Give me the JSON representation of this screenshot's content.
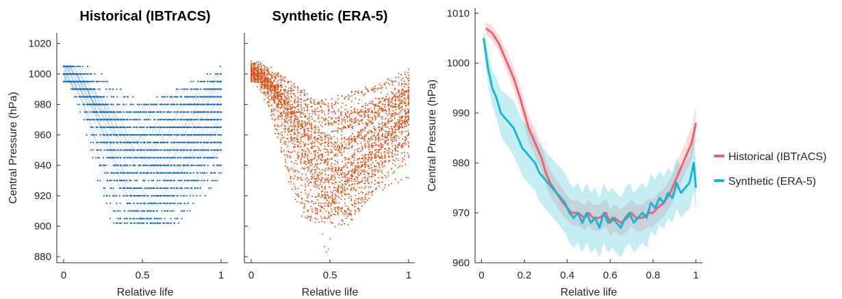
{
  "chart_data": [
    {
      "type": "scatter",
      "title": "Historical (IBTrACS)",
      "xlabel": "Relative life",
      "ylabel": "Central Pressure (hPa)",
      "xlim": [
        0,
        1
      ],
      "ylim": [
        876,
        1027
      ],
      "xticks": [
        "0",
        "0.5",
        "1"
      ],
      "yticks": [
        "880",
        "900",
        "920",
        "940",
        "960",
        "980",
        "1000",
        "1020"
      ],
      "color": "#1f6fbf",
      "n_tracks": 75,
      "n_points_per_track": 48,
      "seed": 11,
      "min_pressure": 902,
      "max_pressure": 1020
    },
    {
      "type": "scatter",
      "title": "Synthetic (ERA-5)",
      "xlabel": "Relative life",
      "xlim": [
        0,
        1
      ],
      "ylim": [
        876,
        1027
      ],
      "xticks": [
        "0",
        "0.5",
        "1"
      ],
      "color": "#d95319",
      "n_tracks": 65,
      "n_points_per_track": 48,
      "seed": 29,
      "min_pressure": 883,
      "max_pressure": 1019
    },
    {
      "type": "line",
      "xlabel": "Relative life",
      "ylabel": "Central Pressure (hPa)",
      "xlim": [
        -0.03,
        1.03
      ],
      "ylim": [
        960,
        1011
      ],
      "xticks": [
        "0",
        "0.2",
        "0.4",
        "0.6",
        "0.8",
        "1"
      ],
      "yticks": [
        "960",
        "970",
        "980",
        "990",
        "1000",
        "1010"
      ],
      "legend_position": "right",
      "series": [
        {
          "name": "Historical (IBTrACS)",
          "color": "#f0606e",
          "x": [
            0.02,
            0.05,
            0.08,
            0.1,
            0.12,
            0.15,
            0.18,
            0.2,
            0.22,
            0.25,
            0.28,
            0.3,
            0.32,
            0.35,
            0.38,
            0.4,
            0.42,
            0.45,
            0.48,
            0.5,
            0.52,
            0.55,
            0.58,
            0.6,
            0.62,
            0.65,
            0.68,
            0.7,
            0.72,
            0.75,
            0.78,
            0.8,
            0.82,
            0.85,
            0.88,
            0.9,
            0.92,
            0.95,
            0.98,
            1.0
          ],
          "y": [
            1007,
            1006,
            1004,
            1002,
            1000,
            997,
            993,
            990,
            987,
            984,
            981,
            978,
            976,
            974,
            972,
            971,
            970,
            970,
            969,
            970,
            969,
            969,
            970,
            968,
            969,
            968,
            969,
            970,
            969,
            969,
            970,
            970,
            971,
            972,
            974,
            976,
            978,
            981,
            984,
            988
          ],
          "band": [
            1.2,
            1.5,
            1.6,
            1.8,
            2.0,
            2.2,
            2.4,
            2.5,
            2.6,
            2.6,
            2.6,
            2.6,
            2.6,
            2.6,
            2.6,
            2.5,
            2.5,
            2.5,
            2.5,
            2.6,
            2.6,
            2.6,
            2.7,
            2.7,
            2.7,
            2.7,
            2.7,
            2.7,
            2.7,
            2.7,
            2.8,
            2.8,
            2.8,
            2.8,
            2.8,
            2.9,
            3.0,
            3.0,
            3.2,
            3.5
          ]
        },
        {
          "name": "Synthetic (ERA-5)",
          "color": "#17b6d2",
          "x": [
            0.01,
            0.03,
            0.05,
            0.07,
            0.09,
            0.11,
            0.13,
            0.15,
            0.17,
            0.19,
            0.21,
            0.23,
            0.25,
            0.27,
            0.29,
            0.31,
            0.33,
            0.35,
            0.37,
            0.39,
            0.41,
            0.43,
            0.45,
            0.47,
            0.49,
            0.51,
            0.53,
            0.55,
            0.57,
            0.59,
            0.61,
            0.63,
            0.65,
            0.67,
            0.69,
            0.71,
            0.73,
            0.75,
            0.77,
            0.79,
            0.81,
            0.83,
            0.85,
            0.87,
            0.89,
            0.91,
            0.93,
            0.95,
            0.97,
            0.99,
            1.0
          ],
          "y": [
            1005,
            999,
            995,
            993,
            990,
            989,
            988,
            987,
            985,
            983,
            982,
            981,
            980,
            978,
            977,
            976,
            975,
            974,
            973,
            972,
            970,
            969,
            970,
            968,
            970,
            968,
            969,
            967,
            970,
            968,
            969,
            968,
            967,
            969,
            970,
            968,
            969,
            970,
            969,
            972,
            971,
            973,
            972,
            974,
            973,
            976,
            974,
            975,
            976,
            980,
            975
          ],
          "band": [
            2.0,
            3.0,
            3.5,
            4.0,
            4.5,
            5.0,
            5.2,
            5.5,
            5.5,
            5.5,
            5.6,
            5.6,
            5.6,
            5.7,
            5.7,
            5.8,
            5.8,
            5.8,
            5.9,
            6.0,
            6.0,
            6.0,
            6.0,
            6.0,
            6.0,
            6.0,
            6.0,
            6.0,
            6.0,
            6.0,
            6.0,
            6.0,
            6.0,
            6.0,
            6.0,
            6.0,
            6.0,
            6.0,
            6.0,
            5.8,
            5.6,
            5.4,
            5.2,
            5.0,
            5.0,
            5.0,
            5.0,
            5.0,
            5.2,
            5.5,
            5.0
          ]
        }
      ]
    }
  ]
}
